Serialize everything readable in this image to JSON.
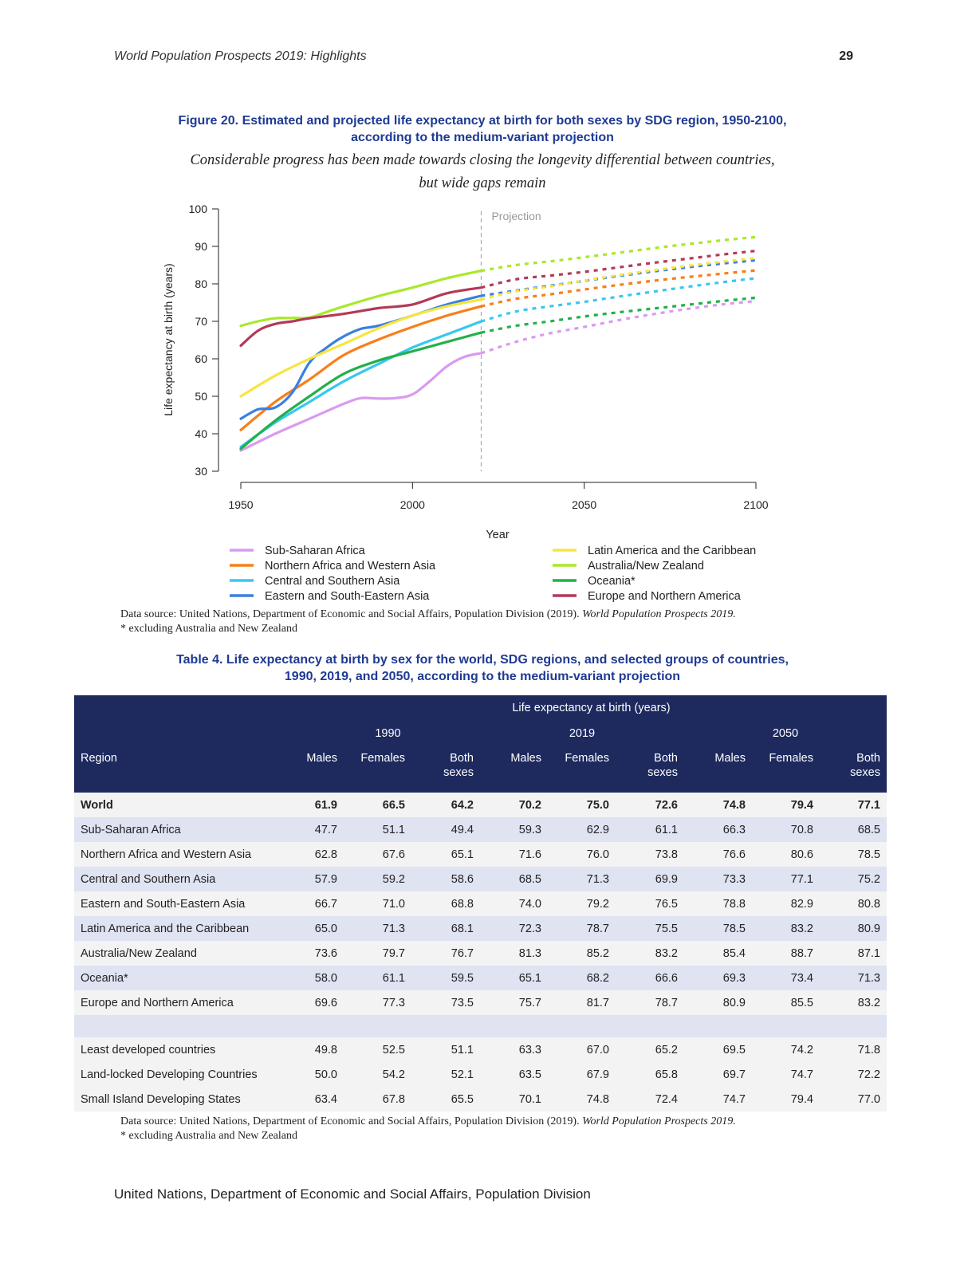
{
  "header": {
    "running_title": "World Population Prospects 2019: Highlights",
    "page_number": "29"
  },
  "figure": {
    "title_line1": "Figure 20. Estimated and projected life expectancy at birth for both sexes by SDG region, 1950-2100,",
    "title_line2": "according to the medium-variant projection",
    "subtitle_line1": "Considerable progress has been made towards closing the longevity differential between countries,",
    "subtitle_line2": "but wide gaps remain",
    "source_text": "Data source: United Nations, Department of Economic and Social Affairs, Population Division (2019). ",
    "source_italic": "World Population Prospects 2019.",
    "footnote": "* excluding Australia and New Zealand"
  },
  "chart_data": {
    "type": "line",
    "xlabel": "Year",
    "ylabel": "Life expectancy at birth (years)",
    "xlim": [
      1950,
      2100
    ],
    "ylim": [
      30,
      100
    ],
    "x_ticks": [
      1950,
      2000,
      2050,
      2100
    ],
    "y_ticks": [
      30,
      40,
      50,
      60,
      70,
      80,
      90,
      100
    ],
    "projection_start": 2020,
    "projection_label": "Projection",
    "legend": "bottom",
    "series": [
      {
        "name": "Sub-Saharan Africa",
        "color": "#d99af0",
        "x": [
          1950,
          1960,
          1970,
          1980,
          1985,
          1990,
          1995,
          2000,
          2005,
          2010,
          2015,
          2020,
          2030,
          2040,
          2050,
          2060,
          2070,
          2080,
          2090,
          2100
        ],
        "y": [
          35.5,
          40.0,
          44.0,
          48.0,
          49.5,
          49.4,
          49.5,
          50.5,
          54.0,
          58.0,
          60.5,
          61.5,
          64.5,
          66.8,
          68.5,
          70.3,
          71.9,
          73.3,
          74.5,
          75.4
        ]
      },
      {
        "name": "Northern Africa and Western Asia",
        "color": "#f77f1a",
        "x": [
          1950,
          1960,
          1970,
          1980,
          1990,
          2000,
          2010,
          2020,
          2030,
          2040,
          2050,
          2060,
          2070,
          2080,
          2090,
          2100
        ],
        "y": [
          41.0,
          48.5,
          54.5,
          61.0,
          65.1,
          68.5,
          71.5,
          74.0,
          76.0,
          77.2,
          78.5,
          79.7,
          80.8,
          81.8,
          82.7,
          83.6
        ]
      },
      {
        "name": "Central and Southern Asia",
        "color": "#37c8ef",
        "x": [
          1950,
          1960,
          1970,
          1980,
          1990,
          2000,
          2010,
          2020,
          2030,
          2040,
          2050,
          2060,
          2070,
          2080,
          2090,
          2100
        ],
        "y": [
          36.5,
          43.0,
          48.5,
          54.0,
          58.6,
          63.0,
          66.5,
          70.0,
          72.6,
          74.0,
          75.2,
          76.6,
          77.9,
          79.2,
          80.4,
          81.5
        ]
      },
      {
        "name": "Eastern and South-Eastern Asia",
        "color": "#3a7fe3",
        "x": [
          1950,
          1955,
          1960,
          1965,
          1970,
          1975,
          1980,
          1985,
          1990,
          2000,
          2010,
          2020,
          2030,
          2040,
          2050,
          2060,
          2070,
          2080,
          2090,
          2100
        ],
        "y": [
          44.0,
          46.5,
          47.0,
          51.0,
          59.0,
          63.0,
          66.0,
          68.0,
          68.8,
          71.5,
          74.5,
          76.8,
          78.2,
          79.5,
          80.8,
          82.1,
          83.3,
          84.4,
          85.4,
          86.3
        ]
      },
      {
        "name": "Latin America and the Caribbean",
        "color": "#f7e540",
        "x": [
          1950,
          1960,
          1970,
          1980,
          1990,
          2000,
          2010,
          2020,
          2030,
          2040,
          2050,
          2060,
          2070,
          2080,
          2090,
          2100
        ],
        "y": [
          50.0,
          55.5,
          60.0,
          64.0,
          68.1,
          71.5,
          74.0,
          75.8,
          78.0,
          79.3,
          80.9,
          82.3,
          83.6,
          84.8,
          85.9,
          86.9
        ]
      },
      {
        "name": "Australia/New Zealand",
        "color": "#a9e82b",
        "x": [
          1950,
          1955,
          1960,
          1965,
          1970,
          1975,
          1980,
          1990,
          2000,
          2010,
          2020,
          2030,
          2040,
          2050,
          2060,
          2070,
          2080,
          2090,
          2100
        ],
        "y": [
          68.8,
          70.0,
          70.8,
          70.9,
          71.0,
          72.5,
          74.0,
          76.7,
          79.0,
          81.5,
          83.5,
          85.0,
          86.0,
          87.1,
          88.3,
          89.5,
          90.6,
          91.6,
          92.5
        ]
      },
      {
        "name": "Oceania*",
        "color": "#22b04b",
        "x": [
          1950,
          1960,
          1970,
          1980,
          1990,
          2000,
          2010,
          2020,
          2030,
          2040,
          2050,
          2060,
          2070,
          2080,
          2090,
          2100
        ],
        "y": [
          36.0,
          43.5,
          50.0,
          56.0,
          59.5,
          62.0,
          64.5,
          67.0,
          68.8,
          70.0,
          71.3,
          72.4,
          73.4,
          74.4,
          75.4,
          76.3
        ]
      },
      {
        "name": "Europe and Northern America",
        "color": "#b23a57",
        "x": [
          1950,
          1955,
          1960,
          1965,
          1970,
          1980,
          1990,
          2000,
          2010,
          2020,
          2030,
          2040,
          2050,
          2060,
          2070,
          2080,
          2090,
          2100
        ],
        "y": [
          63.5,
          67.5,
          69.3,
          70.0,
          70.8,
          72.0,
          73.5,
          74.5,
          77.5,
          79.0,
          81.2,
          82.2,
          83.2,
          84.4,
          85.6,
          86.7,
          87.8,
          88.8
        ]
      }
    ]
  },
  "table": {
    "title_line1": "Table 4. Life expectancy at birth by sex for the world, SDG regions, and selected groups of countries,",
    "title_line2": "1990, 2019, and 2050, according to the medium-variant projection",
    "header_top": "Life expectancy at birth (years)",
    "years": [
      "1990",
      "2019",
      "2050"
    ],
    "region_header": "Region",
    "col_males": "Males",
    "col_females": "Females",
    "col_both_1": "Both",
    "col_both_2": "sexes",
    "rows": [
      {
        "region": "World",
        "v": [
          "61.9",
          "66.5",
          "64.2",
          "70.2",
          "75.0",
          "72.6",
          "74.8",
          "79.4",
          "77.1"
        ]
      },
      {
        "region": "Sub-Saharan Africa",
        "v": [
          "47.7",
          "51.1",
          "49.4",
          "59.3",
          "62.9",
          "61.1",
          "66.3",
          "70.8",
          "68.5"
        ]
      },
      {
        "region": "Northern Africa and Western Asia",
        "v": [
          "62.8",
          "67.6",
          "65.1",
          "71.6",
          "76.0",
          "73.8",
          "76.6",
          "80.6",
          "78.5"
        ]
      },
      {
        "region": "Central and Southern Asia",
        "v": [
          "57.9",
          "59.2",
          "58.6",
          "68.5",
          "71.3",
          "69.9",
          "73.3",
          "77.1",
          "75.2"
        ]
      },
      {
        "region": "Eastern and South-Eastern Asia",
        "v": [
          "66.7",
          "71.0",
          "68.8",
          "74.0",
          "79.2",
          "76.5",
          "78.8",
          "82.9",
          "80.8"
        ]
      },
      {
        "region": "Latin America and the Caribbean",
        "v": [
          "65.0",
          "71.3",
          "68.1",
          "72.3",
          "78.7",
          "75.5",
          "78.5",
          "83.2",
          "80.9"
        ]
      },
      {
        "region": "Australia/New Zealand",
        "v": [
          "73.6",
          "79.7",
          "76.7",
          "81.3",
          "85.2",
          "83.2",
          "85.4",
          "88.7",
          "87.1"
        ]
      },
      {
        "region": "Oceania*",
        "v": [
          "58.0",
          "61.1",
          "59.5",
          "65.1",
          "68.2",
          "66.6",
          "69.3",
          "73.4",
          "71.3"
        ]
      },
      {
        "region": "Europe and Northern America",
        "v": [
          "69.6",
          "77.3",
          "73.5",
          "75.7",
          "81.7",
          "78.7",
          "80.9",
          "85.5",
          "83.2"
        ]
      }
    ],
    "group_rows": [
      {
        "region": "Least developed countries",
        "v": [
          "49.8",
          "52.5",
          "51.1",
          "63.3",
          "67.0",
          "65.2",
          "69.5",
          "74.2",
          "71.8"
        ]
      },
      {
        "region": "Land-locked Developing Countries",
        "v": [
          "50.0",
          "54.2",
          "52.1",
          "63.5",
          "67.9",
          "65.8",
          "69.7",
          "74.7",
          "72.2"
        ]
      },
      {
        "region": "Small Island Developing States",
        "v": [
          "63.4",
          "67.8",
          "65.5",
          "70.1",
          "74.8",
          "72.4",
          "74.7",
          "79.4",
          "77.0"
        ]
      }
    ],
    "source_text": "Data source: United Nations, Department of Economic and Social Affairs, Population Division (2019). ",
    "source_italic": "World Population Prospects 2019.",
    "footnote": "* excluding Australia and New Zealand"
  },
  "footer": {
    "text": "United Nations, Department of Economic and Social Affairs, Population Division"
  }
}
